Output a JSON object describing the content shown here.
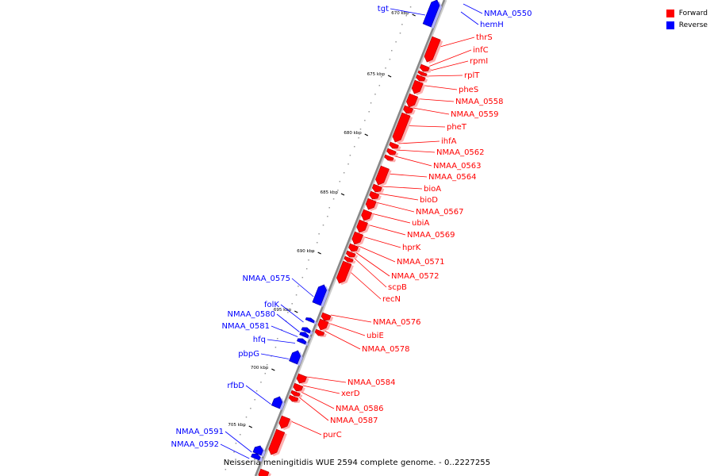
{
  "colors": {
    "forward": "#ff0000",
    "reverse": "#0000ff",
    "backbone": "#888888"
  },
  "legend": [
    {
      "label": "Forward",
      "color": "#ff0000"
    },
    {
      "label": "Reverse",
      "color": "#0000ff"
    }
  ],
  "caption": "Neisseria meningitidis WUE 2594 complete genome. - 0..2227255",
  "scale_labels": [
    "670 kbp",
    "675 kbp",
    "680 kbp",
    "685 kbp",
    "690 kbp",
    "695 kbp",
    "700 kbp",
    "705 kbp"
  ],
  "genes": [
    {
      "name": "tgt",
      "strand": "reverse"
    },
    {
      "name": "NMAA_0550",
      "strand": "reverse"
    },
    {
      "name": "hemH",
      "strand": "reverse"
    },
    {
      "name": "thrS",
      "strand": "forward"
    },
    {
      "name": "infC",
      "strand": "forward"
    },
    {
      "name": "rpmI",
      "strand": "forward"
    },
    {
      "name": "rplT",
      "strand": "forward"
    },
    {
      "name": "pheS",
      "strand": "forward"
    },
    {
      "name": "NMAA_0558",
      "strand": "forward"
    },
    {
      "name": "NMAA_0559",
      "strand": "forward"
    },
    {
      "name": "pheT",
      "strand": "forward"
    },
    {
      "name": "ihfA",
      "strand": "forward"
    },
    {
      "name": "NMAA_0562",
      "strand": "forward"
    },
    {
      "name": "NMAA_0563",
      "strand": "forward"
    },
    {
      "name": "NMAA_0564",
      "strand": "forward"
    },
    {
      "name": "bioA",
      "strand": "forward"
    },
    {
      "name": "bioD",
      "strand": "forward"
    },
    {
      "name": "NMAA_0567",
      "strand": "forward"
    },
    {
      "name": "ubiA",
      "strand": "forward"
    },
    {
      "name": "NMAA_0569",
      "strand": "forward"
    },
    {
      "name": "hprK",
      "strand": "forward"
    },
    {
      "name": "NMAA_0571",
      "strand": "forward"
    },
    {
      "name": "NMAA_0572",
      "strand": "forward"
    },
    {
      "name": "scpB",
      "strand": "forward"
    },
    {
      "name": "recN",
      "strand": "forward"
    },
    {
      "name": "NMAA_0575",
      "strand": "reverse"
    },
    {
      "name": "NMAA_0576",
      "strand": "forward"
    },
    {
      "name": "folK",
      "strand": "reverse"
    },
    {
      "name": "NMAA_0580",
      "strand": "reverse"
    },
    {
      "name": "ubiE",
      "strand": "forward"
    },
    {
      "name": "NMAA_0581",
      "strand": "reverse"
    },
    {
      "name": "NMAA_0578",
      "strand": "forward"
    },
    {
      "name": "hfq",
      "strand": "reverse"
    },
    {
      "name": "pbpG",
      "strand": "reverse"
    },
    {
      "name": "NMAA_0584",
      "strand": "forward"
    },
    {
      "name": "rfbD",
      "strand": "reverse"
    },
    {
      "name": "xerD",
      "strand": "forward"
    },
    {
      "name": "NMAA_0586",
      "strand": "forward"
    },
    {
      "name": "NMAA_0587",
      "strand": "forward"
    },
    {
      "name": "NMAA_0591",
      "strand": "reverse"
    },
    {
      "name": "purC",
      "strand": "forward"
    },
    {
      "name": "NMAA_0592",
      "strand": "reverse"
    }
  ]
}
